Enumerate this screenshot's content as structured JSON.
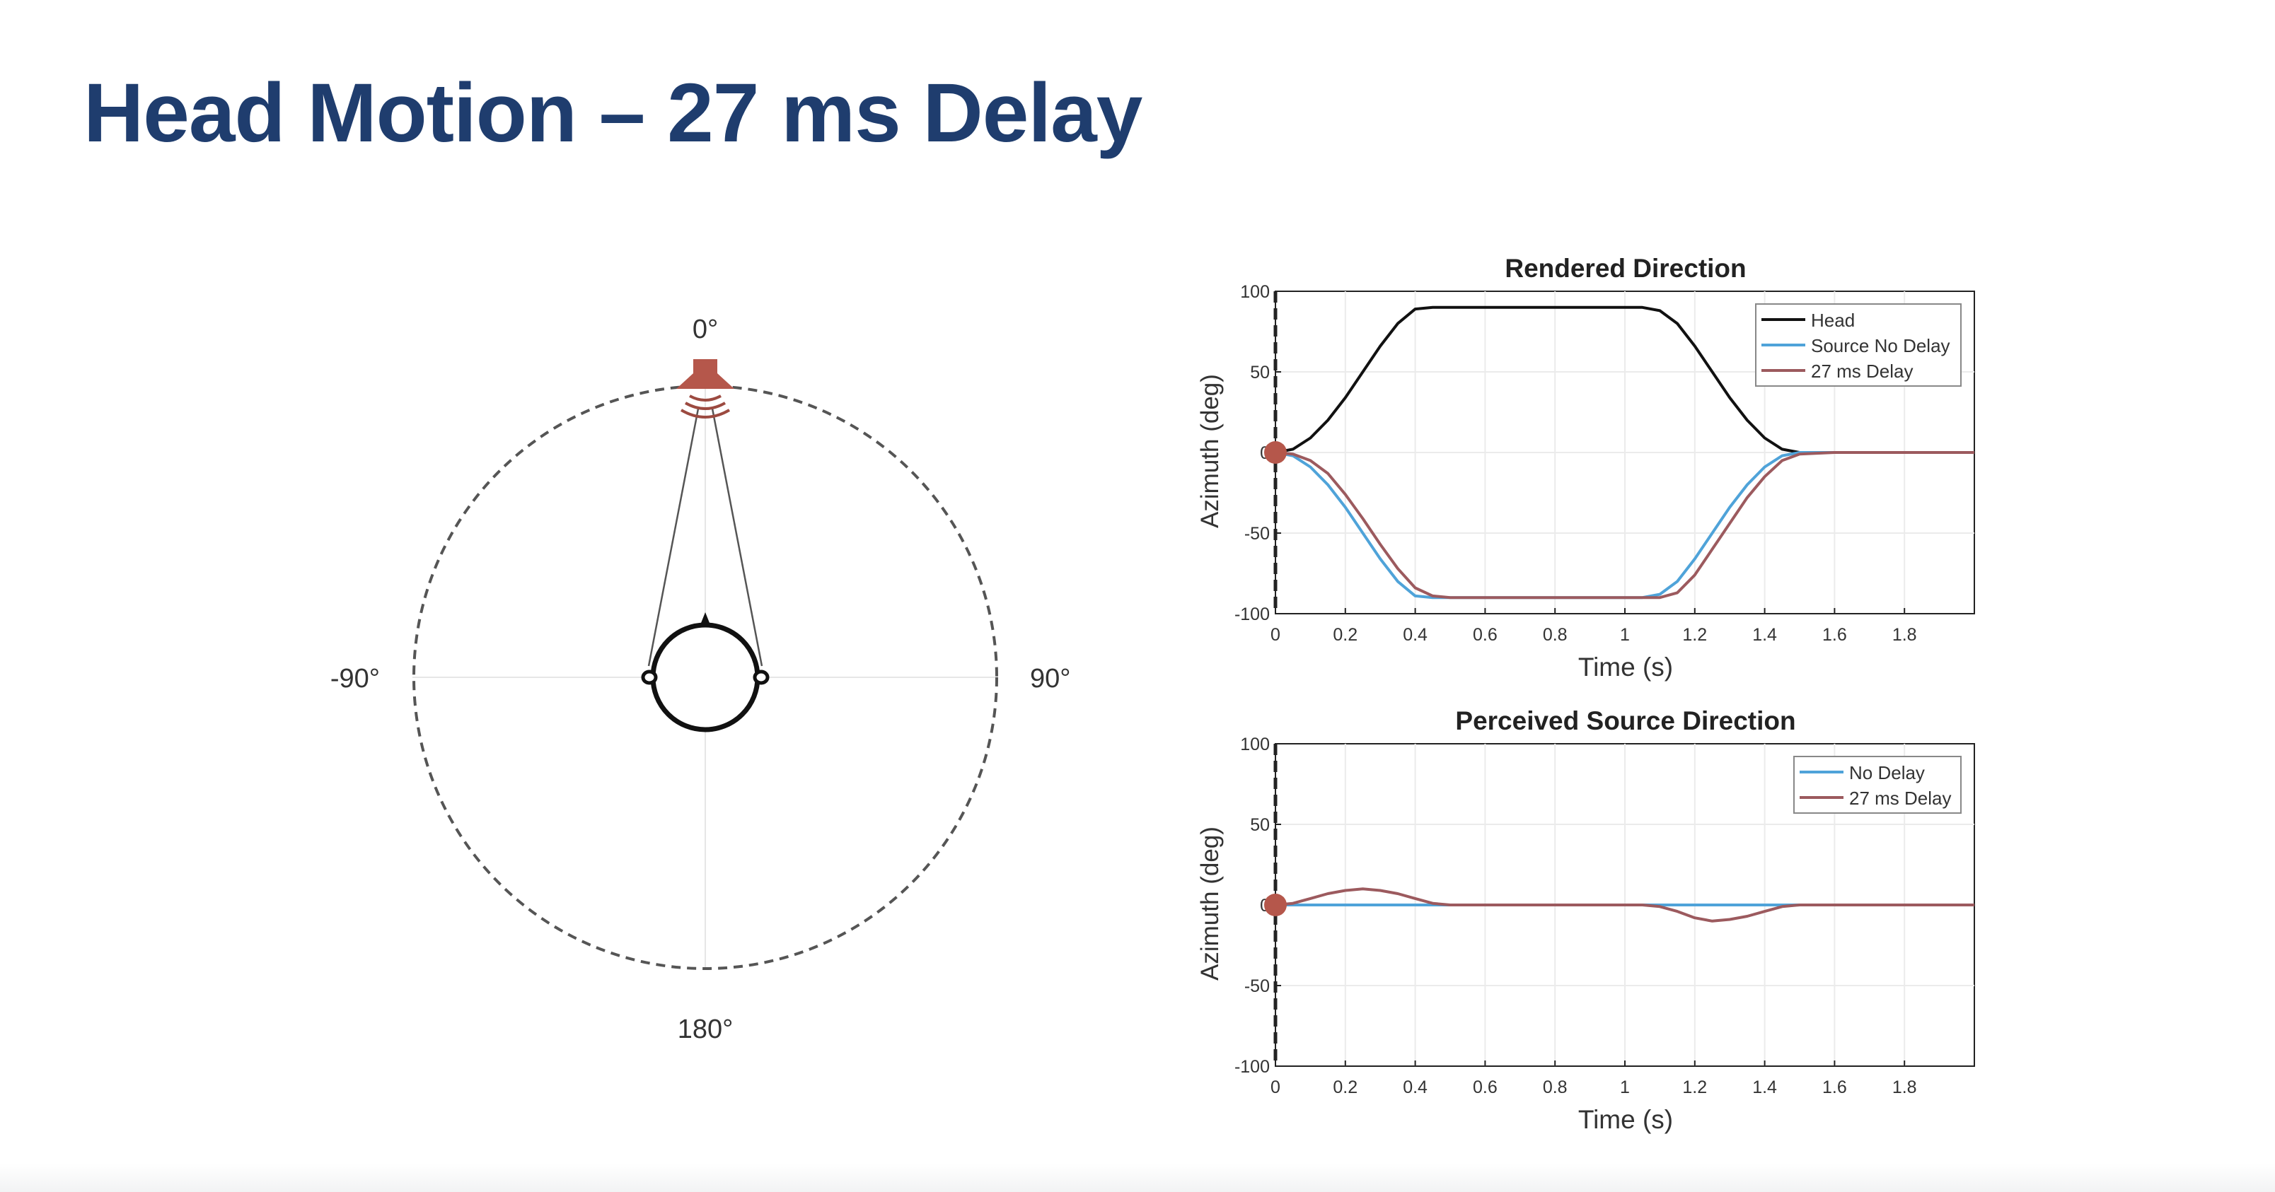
{
  "slide": {
    "title": "Head Motion – 27 ms Delay"
  },
  "head_diagram": {
    "labels": {
      "top": "0°",
      "left": "-90°",
      "right": "90°",
      "bottom": "180°"
    },
    "colors": {
      "speaker": "#b5574b",
      "circle": "#555555",
      "head": "#111111"
    }
  },
  "chart_data": [
    {
      "type": "line",
      "title": "Rendered Direction",
      "xlabel": "Time (s)",
      "ylabel": "Azimuth (deg)",
      "xlim": [
        0,
        2
      ],
      "ylim": [
        -100,
        100
      ],
      "xticks": [
        "0",
        "0.2",
        "0.4",
        "0.6",
        "0.8",
        "1",
        "1.2",
        "1.4",
        "1.6",
        "1.8"
      ],
      "yticks": [
        "100",
        "50",
        "0",
        "-50",
        "-100"
      ],
      "grid": true,
      "legend_position": "top-right",
      "x": [
        0,
        0.05,
        0.1,
        0.15,
        0.2,
        0.25,
        0.3,
        0.35,
        0.4,
        0.45,
        0.5,
        0.6,
        0.7,
        0.8,
        0.9,
        1.0,
        1.05,
        1.1,
        1.15,
        1.2,
        1.25,
        1.3,
        1.35,
        1.4,
        1.45,
        1.5,
        1.6,
        1.7,
        1.8,
        1.9,
        2.0
      ],
      "series": [
        {
          "name": "Head",
          "color": "#111111",
          "values": [
            0,
            2,
            9,
            20,
            34,
            50,
            66,
            80,
            89,
            90,
            90,
            90,
            90,
            90,
            90,
            90,
            90,
            88,
            80,
            66,
            50,
            34,
            20,
            9,
            2,
            0,
            0,
            0,
            0,
            0,
            0
          ]
        },
        {
          "name": "Source No Delay",
          "color": "#4fa3d9",
          "values": [
            0,
            -2,
            -9,
            -20,
            -34,
            -50,
            -66,
            -80,
            -89,
            -90,
            -90,
            -90,
            -90,
            -90,
            -90,
            -90,
            -90,
            -88,
            -80,
            -66,
            -50,
            -34,
            -20,
            -9,
            -2,
            0,
            0,
            0,
            0,
            0,
            0
          ]
        },
        {
          "name": "27 ms Delay",
          "color": "#9c5a5e",
          "values": [
            0,
            -1,
            -5,
            -13,
            -26,
            -41,
            -57,
            -72,
            -84,
            -89,
            -90,
            -90,
            -90,
            -90,
            -90,
            -90,
            -90,
            -90,
            -87,
            -76,
            -60,
            -44,
            -28,
            -15,
            -5,
            -1,
            0,
            0,
            0,
            0,
            0
          ]
        }
      ],
      "marker": {
        "x": 0,
        "y": 0,
        "color": "#b5574b"
      }
    },
    {
      "type": "line",
      "title": "Perceived Source Direction",
      "xlabel": "Time (s)",
      "ylabel": "Azimuth (deg)",
      "xlim": [
        0,
        2
      ],
      "ylim": [
        -100,
        100
      ],
      "xticks": [
        "0",
        "0.2",
        "0.4",
        "0.6",
        "0.8",
        "1",
        "1.2",
        "1.4",
        "1.6",
        "1.8"
      ],
      "yticks": [
        "100",
        "50",
        "0",
        "-50",
        "-100"
      ],
      "grid": true,
      "legend_position": "top-right",
      "x": [
        0,
        0.05,
        0.1,
        0.15,
        0.2,
        0.25,
        0.3,
        0.35,
        0.4,
        0.45,
        0.5,
        0.6,
        0.8,
        1.0,
        1.05,
        1.1,
        1.15,
        1.2,
        1.25,
        1.3,
        1.35,
        1.4,
        1.45,
        1.5,
        1.6,
        1.8,
        2.0
      ],
      "series": [
        {
          "name": "No Delay",
          "color": "#4fa3d9",
          "values": [
            0,
            0,
            0,
            0,
            0,
            0,
            0,
            0,
            0,
            0,
            0,
            0,
            0,
            0,
            0,
            0,
            0,
            0,
            0,
            0,
            0,
            0,
            0,
            0,
            0,
            0,
            0
          ]
        },
        {
          "name": "27 ms Delay",
          "color": "#9c5a5e",
          "values": [
            0,
            1,
            4,
            7,
            9,
            10,
            9,
            7,
            4,
            1,
            0,
            0,
            0,
            0,
            0,
            -1,
            -4,
            -8,
            -10,
            -9,
            -7,
            -4,
            -1,
            0,
            0,
            0,
            0
          ]
        }
      ],
      "marker": {
        "x": 0,
        "y": 0,
        "color": "#b5574b"
      }
    }
  ]
}
